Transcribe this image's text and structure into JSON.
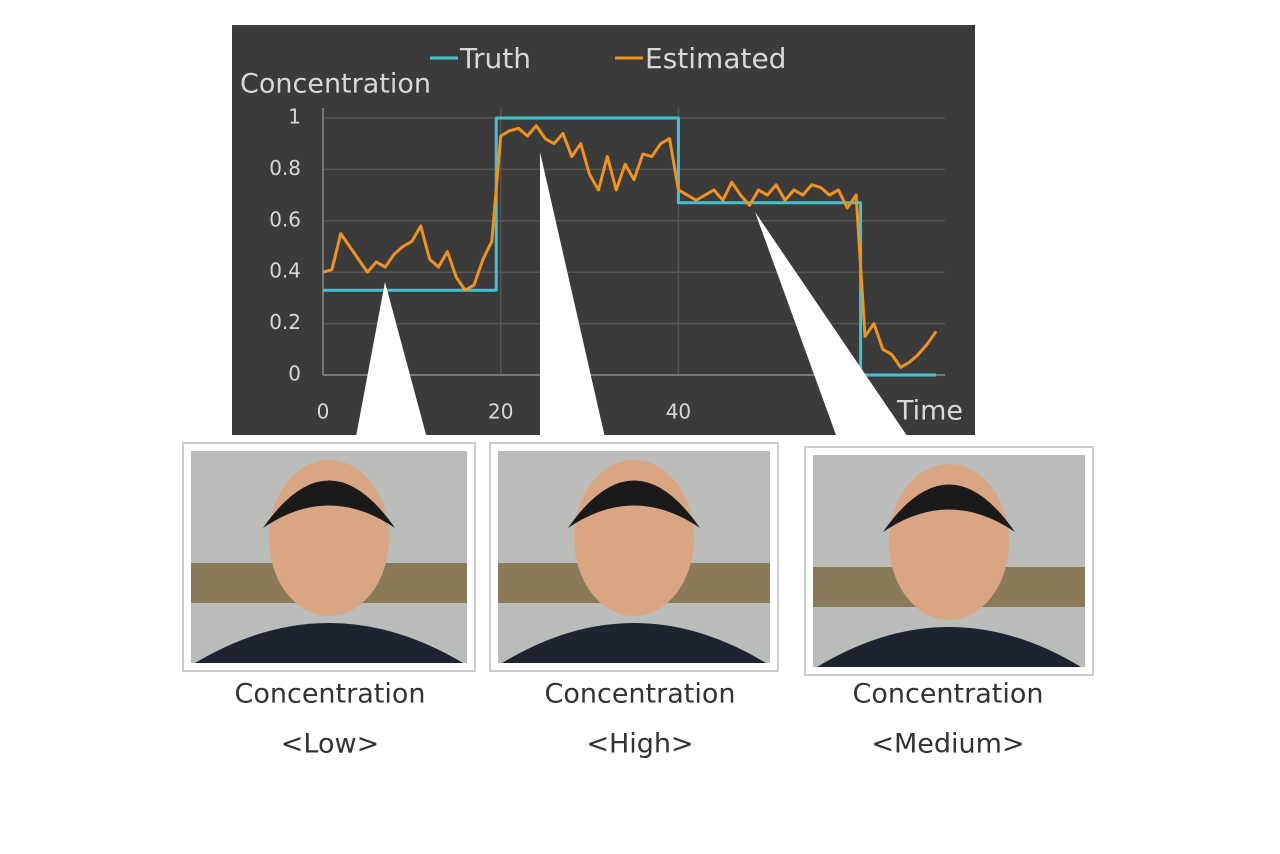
{
  "chart_data": {
    "type": "line",
    "ylabel": "Concentration",
    "xlabel": "Time",
    "xlim": [
      0,
      70
    ],
    "ylim": [
      0,
      1
    ],
    "xticks": [
      0,
      20,
      40
    ],
    "yticks": [
      0,
      0.2,
      0.4,
      0.6,
      0.8,
      1
    ],
    "grid": true,
    "legend": "top",
    "series": [
      {
        "name": "Truth",
        "color": "#3fc1d3",
        "x": [
          0,
          19.5,
          19.5,
          40,
          40,
          60.5,
          60.5,
          69
        ],
        "values": [
          0.33,
          0.33,
          1,
          1,
          0.67,
          0.67,
          0,
          0
        ]
      },
      {
        "name": "Estimated",
        "color": "#f0921e",
        "x": [
          0,
          1,
          2,
          3,
          4,
          5,
          6,
          7,
          8,
          9,
          10,
          11,
          12,
          13,
          14,
          15,
          16,
          17,
          18,
          19,
          20,
          21,
          22,
          23,
          24,
          25,
          26,
          27,
          28,
          29,
          30,
          31,
          32,
          33,
          34,
          35,
          36,
          37,
          38,
          39,
          40,
          41,
          42,
          43,
          44,
          45,
          46,
          47,
          48,
          49,
          50,
          51,
          52,
          53,
          54,
          55,
          56,
          57,
          58,
          59,
          60,
          61,
          62,
          63,
          64,
          65,
          66,
          67,
          68,
          69
        ],
        "values": [
          0.4,
          0.41,
          0.55,
          0.5,
          0.45,
          0.4,
          0.44,
          0.42,
          0.47,
          0.5,
          0.52,
          0.58,
          0.45,
          0.42,
          0.48,
          0.38,
          0.33,
          0.35,
          0.45,
          0.52,
          0.93,
          0.95,
          0.96,
          0.93,
          0.97,
          0.92,
          0.9,
          0.94,
          0.85,
          0.9,
          0.78,
          0.72,
          0.85,
          0.72,
          0.82,
          0.76,
          0.86,
          0.85,
          0.9,
          0.92,
          0.72,
          0.7,
          0.68,
          0.7,
          0.72,
          0.68,
          0.75,
          0.7,
          0.66,
          0.72,
          0.7,
          0.74,
          0.68,
          0.72,
          0.7,
          0.74,
          0.73,
          0.7,
          0.72,
          0.65,
          0.7,
          0.15,
          0.2,
          0.1,
          0.08,
          0.03,
          0.05,
          0.08,
          0.12,
          0.17
        ]
      }
    ]
  },
  "panels": [
    {
      "title": "Concentration",
      "label": "<Low>"
    },
    {
      "title": "Concentration",
      "label": "<High>"
    },
    {
      "title": "Concentration",
      "label": "<Medium>"
    }
  ]
}
